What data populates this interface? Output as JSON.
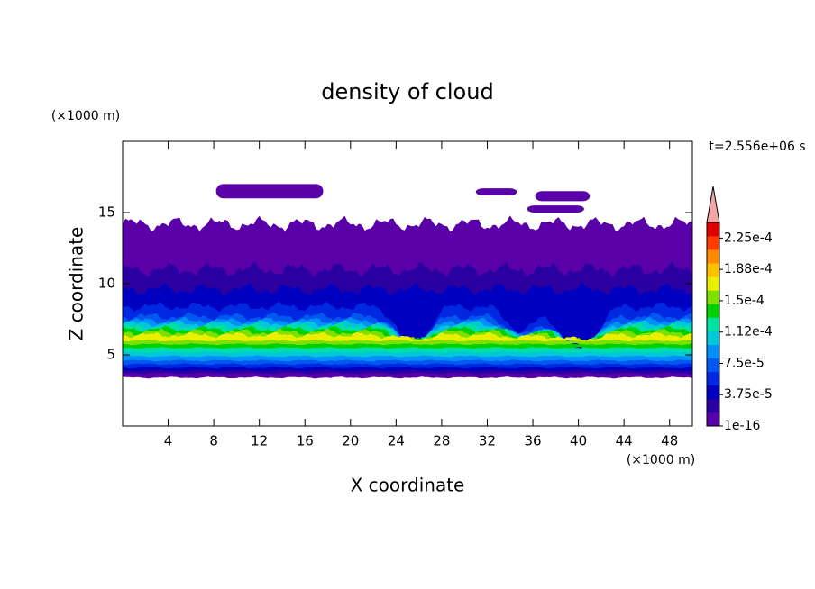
{
  "chart_data": {
    "type": "contour",
    "title": "density of cloud",
    "x_label": "X coordinate",
    "y_label": "Z coordinate",
    "x_unit": "(×1000 m)",
    "y_unit": "(×1000 m)",
    "time_label": "t=2.556e+06 s",
    "xlim": [
      0,
      50
    ],
    "ylim": [
      0,
      20
    ],
    "xticks": [
      4,
      8,
      12,
      16,
      20,
      24,
      28,
      32,
      36,
      40,
      44,
      48
    ],
    "yticks": [
      5,
      10,
      15
    ],
    "colorbar": {
      "lim": [
        1e-16,
        0.00024375
      ],
      "ticks": [
        {
          "value": 1e-16,
          "label": "1e-16"
        },
        {
          "value": 3.75e-05,
          "label": "3.75e-5"
        },
        {
          "value": 7.5e-05,
          "label": "7.5e-5"
        },
        {
          "value": 0.0001125,
          "label": "1.12e-4"
        },
        {
          "value": 0.00015,
          "label": "1.5e-4"
        },
        {
          "value": 0.0001875,
          "label": "1.88e-4"
        },
        {
          "value": 0.000225,
          "label": "2.25e-4"
        }
      ],
      "colors": [
        "#5a00a8",
        "#2a00a0",
        "#0000c0",
        "#0028e0",
        "#0058f0",
        "#0090f8",
        "#00c8d8",
        "#00e0a0",
        "#00d000",
        "#7ee000",
        "#e8f000",
        "#ffc000",
        "#ff8a00",
        "#ff3c00",
        "#e00000"
      ],
      "extend_color": "#f4a6a6"
    }
  }
}
